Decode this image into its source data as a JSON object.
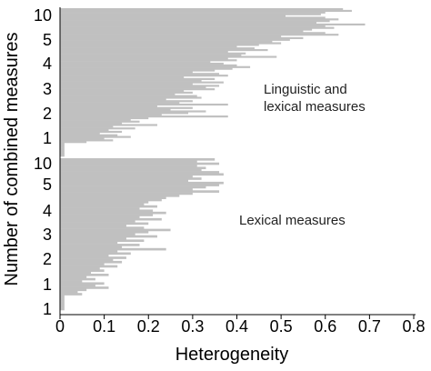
{
  "chart_data": {
    "type": "bar",
    "orientation": "horizontal",
    "xlabel": "Heterogeneity",
    "ylabel": "Number of combined measures",
    "xlim": [
      0,
      0.8
    ],
    "xticks": [
      "0",
      "0.1",
      "0.2",
      "0.3",
      "0.4",
      "0.5",
      "0.6",
      "0.7",
      "0.8"
    ],
    "grid": false,
    "bar_color": "#c0c0c0",
    "panels": [
      {
        "annotation_lines": [
          "Linguistic and",
          "lexical measures"
        ],
        "ytick_labels": [
          "10",
          "5",
          "4",
          "3",
          "2",
          "1"
        ],
        "groups": [
          {
            "k": 10,
            "values": [
              0.64,
              0.66,
              0.6,
              0.59,
              0.51,
              0.6
            ]
          },
          {
            "k": 9,
            "values": [
              0.63,
              0.61,
              0.58,
              0.69,
              0.6
            ]
          },
          {
            "k": 8,
            "values": [
              0.62,
              0.57,
              0.55,
              0.6,
              0.63,
              0.5
            ]
          },
          {
            "k": 7,
            "values": [
              0.55,
              0.52,
              0.48,
              0.5
            ]
          },
          {
            "k": 6,
            "values": [
              0.45,
              0.4,
              0.44,
              0.47,
              0.38,
              0.42
            ]
          },
          {
            "k": 5,
            "values": [
              0.41,
              0.49,
              0.38,
              0.4,
              0.34,
              0.37,
              0.4,
              0.43
            ]
          },
          {
            "k": 4,
            "values": [
              0.39,
              0.35,
              0.3,
              0.36,
              0.38,
              0.28,
              0.35,
              0.32,
              0.37,
              0.3,
              0.36
            ]
          },
          {
            "k": 3,
            "values": [
              0.33,
              0.35,
              0.28,
              0.3,
              0.26,
              0.31,
              0.32,
              0.24,
              0.3,
              0.27,
              0.38,
              0.22,
              0.3,
              0.25,
              0.33,
              0.29
            ]
          },
          {
            "k": 2,
            "values": [
              0.23,
              0.38,
              0.2,
              0.16,
              0.18,
              0.14,
              0.22,
              0.12,
              0.17,
              0.11,
              0.14,
              0.09,
              0.13
            ]
          },
          {
            "k": 1,
            "values": [
              0.16,
              0.1,
              0.12,
              0.06
            ]
          },
          {
            "k": 0,
            "values": [
              0.01,
              0.01,
              0.01,
              0.01,
              0.01,
              0.01,
              0.01,
              0.01
            ]
          }
        ]
      },
      {
        "annotation_lines": [
          "Lexical measures"
        ],
        "ytick_labels": [
          "10",
          "5",
          "4",
          "3",
          "2",
          "1",
          "1"
        ],
        "groups": [
          {
            "k": 10,
            "values": [
              0.35,
              0.31,
              0.36,
              0.31,
              0.33
            ]
          },
          {
            "k": 9,
            "values": [
              0.32,
              0.36,
              0.37,
              0.3,
              0.32,
              0.29
            ]
          },
          {
            "k": 8,
            "values": [
              0.37,
              0.36,
              0.33,
              0.3,
              0.36
            ]
          },
          {
            "k": 7,
            "values": [
              0.3,
              0.27,
              0.24
            ]
          },
          {
            "k": 6,
            "values": [
              0.23,
              0.2,
              0.19,
              0.22,
              0.18,
              0.21
            ]
          },
          {
            "k": 5,
            "values": [
              0.24,
              0.21,
              0.18,
              0.23,
              0.17,
              0.2,
              0.15,
              0.19
            ]
          },
          {
            "k": 4,
            "values": [
              0.25,
              0.2,
              0.17,
              0.22,
              0.15,
              0.19,
              0.13
            ]
          },
          {
            "k": 3,
            "values": [
              0.18,
              0.14,
              0.24,
              0.13,
              0.16,
              0.11,
              0.15,
              0.12,
              0.14,
              0.1
            ]
          },
          {
            "k": 2,
            "values": [
              0.13,
              0.09,
              0.1,
              0.07,
              0.11,
              0.06,
              0.08,
              0.05
            ]
          },
          {
            "k": 1,
            "values": [
              0.1,
              0.08,
              0.11,
              0.06,
              0.04,
              0.05
            ]
          },
          {
            "k": 0,
            "values": [
              0.01,
              0.01,
              0.01,
              0.01,
              0.01,
              0.01,
              0.01
            ]
          }
        ]
      }
    ]
  }
}
